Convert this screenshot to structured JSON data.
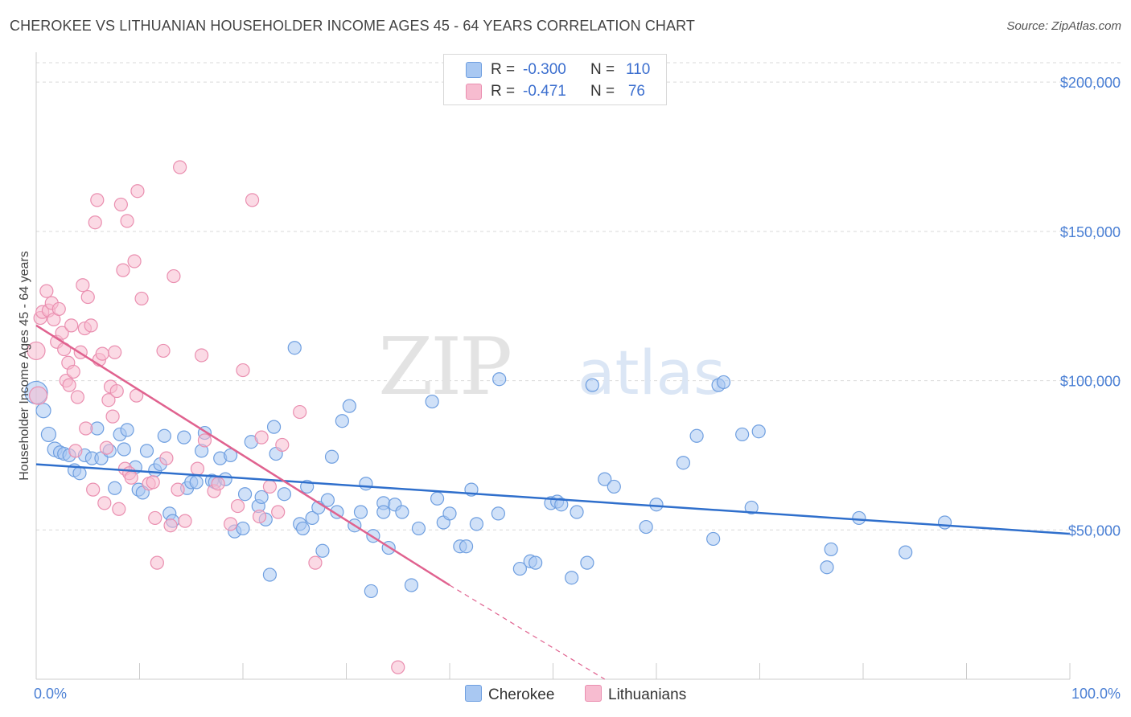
{
  "title": "CHEROKEE VS LITHUANIAN HOUSEHOLDER INCOME AGES 45 - 64 YEARS CORRELATION CHART",
  "source": "Source: ZipAtlas.com",
  "watermark": {
    "zip": "ZIP",
    "atlas": "atlas"
  },
  "colors": {
    "cherokee_fill": "#a9c8f2",
    "cherokee_stroke": "#6f9fe0",
    "cherokee_line": "#2f6fcc",
    "lithuanian_fill": "#f7bcd0",
    "lithuanian_stroke": "#ea8fb0",
    "lithuanian_line": "#e0628f",
    "tick_label": "#4a7fd4",
    "grid": "#d9d9d9"
  },
  "legend": {
    "r_label": "R =",
    "n_label": "N =",
    "rows": [
      {
        "r": "-0.300",
        "n": "110"
      },
      {
        "r": "-0.471",
        "n": "76"
      }
    ]
  },
  "bottom_legend": [
    "Cherokee",
    "Lithuanians"
  ],
  "chart_data": {
    "type": "scatter",
    "title": "CHEROKEE VS LITHUANIAN HOUSEHOLDER INCOME AGES 45 - 64 YEARS CORRELATION CHART",
    "xlabel": "",
    "ylabel": "Householder Income Ages 45 - 64 years",
    "xlim": [
      0,
      100
    ],
    "ylim": [
      0,
      210000
    ],
    "x_tick_labels": [
      "0.0%",
      "100.0%"
    ],
    "y_ticks": [
      50000,
      100000,
      150000,
      200000
    ],
    "y_tick_labels": [
      "$50,000",
      "$100,000",
      "$150,000",
      "$200,000"
    ],
    "grid": true,
    "legend_position": "top-center",
    "series": [
      {
        "name": "Cherokee",
        "r": -0.3,
        "n": 110,
        "trend": {
          "x": [
            0,
            100
          ],
          "y": [
            72000,
            48700
          ]
        },
        "points": [
          [
            0,
            96000,
            14
          ],
          [
            0.7,
            90000,
            9
          ],
          [
            1.2,
            82000,
            9
          ],
          [
            1.8,
            77000,
            9
          ],
          [
            2.3,
            76000,
            8
          ],
          [
            2.7,
            75500,
            8
          ],
          [
            3.2,
            75000,
            8
          ],
          [
            3.7,
            70000,
            8
          ],
          [
            4.2,
            69000,
            8
          ],
          [
            4.7,
            75000,
            8
          ],
          [
            5.4,
            74000,
            8
          ],
          [
            5.9,
            84000,
            8
          ],
          [
            6.3,
            74000,
            8
          ],
          [
            7.1,
            76500,
            8
          ],
          [
            7.6,
            64000,
            8
          ],
          [
            8.1,
            82000,
            8
          ],
          [
            8.5,
            77000,
            8
          ],
          [
            8.8,
            83500,
            8
          ],
          [
            9.6,
            71000,
            8
          ],
          [
            9.9,
            63500,
            8
          ],
          [
            10.3,
            62500,
            8
          ],
          [
            10.7,
            76500,
            8
          ],
          [
            11.5,
            70000,
            8
          ],
          [
            12.0,
            72000,
            8
          ],
          [
            12.4,
            81500,
            8
          ],
          [
            12.9,
            55500,
            8
          ],
          [
            13.2,
            53000,
            8
          ],
          [
            14.3,
            81000,
            8
          ],
          [
            14.6,
            64000,
            8
          ],
          [
            15.0,
            66000,
            8
          ],
          [
            15.5,
            66000,
            8
          ],
          [
            16.0,
            76500,
            8
          ],
          [
            16.3,
            82500,
            8
          ],
          [
            17.0,
            66500,
            8
          ],
          [
            17.3,
            66000,
            8
          ],
          [
            17.8,
            74000,
            8
          ],
          [
            18.3,
            67000,
            8
          ],
          [
            18.8,
            75000,
            8
          ],
          [
            19.2,
            49500,
            8
          ],
          [
            20.0,
            50500,
            8
          ],
          [
            20.2,
            62000,
            8
          ],
          [
            20.8,
            79500,
            8
          ],
          [
            21.5,
            58000,
            8
          ],
          [
            21.8,
            61000,
            8
          ],
          [
            22.2,
            53500,
            8
          ],
          [
            22.6,
            35000,
            8
          ],
          [
            23.0,
            84500,
            8
          ],
          [
            23.2,
            75500,
            8
          ],
          [
            24.0,
            62000,
            8
          ],
          [
            25.0,
            111000,
            8
          ],
          [
            25.5,
            52000,
            8
          ],
          [
            25.8,
            50500,
            8
          ],
          [
            26.2,
            64500,
            8
          ],
          [
            26.7,
            54000,
            8
          ],
          [
            27.3,
            57500,
            8
          ],
          [
            27.7,
            43000,
            8
          ],
          [
            28.2,
            60000,
            8
          ],
          [
            28.6,
            74500,
            8
          ],
          [
            29.1,
            56000,
            8
          ],
          [
            29.6,
            86500,
            8
          ],
          [
            30.3,
            91500,
            8
          ],
          [
            30.8,
            51500,
            8
          ],
          [
            31.4,
            56000,
            8
          ],
          [
            31.9,
            65500,
            8
          ],
          [
            32.4,
            29500,
            8
          ],
          [
            32.6,
            48000,
            8
          ],
          [
            33.6,
            59000,
            8
          ],
          [
            33.6,
            56000,
            8
          ],
          [
            34.1,
            44000,
            8
          ],
          [
            34.7,
            58500,
            8
          ],
          [
            35.4,
            56000,
            8
          ],
          [
            36.3,
            31500,
            8
          ],
          [
            37.0,
            50500,
            8
          ],
          [
            38.3,
            93000,
            8
          ],
          [
            38.8,
            60500,
            8
          ],
          [
            39.4,
            52500,
            8
          ],
          [
            40.0,
            55500,
            8
          ],
          [
            41.0,
            44500,
            8
          ],
          [
            41.6,
            44500,
            8
          ],
          [
            42.1,
            63500,
            8
          ],
          [
            42.6,
            52000,
            8
          ],
          [
            44.8,
            100500,
            8
          ],
          [
            44.7,
            55500,
            8
          ],
          [
            46.8,
            37000,
            8
          ],
          [
            47.8,
            39500,
            8
          ],
          [
            48.3,
            39000,
            8
          ],
          [
            49.8,
            59000,
            8
          ],
          [
            50.4,
            59500,
            8
          ],
          [
            50.8,
            58500,
            8
          ],
          [
            51.8,
            34000,
            8
          ],
          [
            52.3,
            56000,
            8
          ],
          [
            53.3,
            39000,
            8
          ],
          [
            53.8,
            98500,
            8
          ],
          [
            55.0,
            67000,
            8
          ],
          [
            55.9,
            64500,
            8
          ],
          [
            59.0,
            51000,
            8
          ],
          [
            60.0,
            58500,
            8
          ],
          [
            62.6,
            72500,
            8
          ],
          [
            63.9,
            81500,
            8
          ],
          [
            65.5,
            47000,
            8
          ],
          [
            66.0,
            98500,
            8
          ],
          [
            66.5,
            99500,
            8
          ],
          [
            68.3,
            82000,
            8
          ],
          [
            69.2,
            57500,
            8
          ],
          [
            69.9,
            83000,
            8
          ],
          [
            76.5,
            37500,
            8
          ],
          [
            76.9,
            43500,
            8
          ],
          [
            79.6,
            54000,
            8
          ],
          [
            84.1,
            42500,
            8
          ],
          [
            87.9,
            52500,
            8
          ]
        ]
      },
      {
        "name": "Lithuanians",
        "r": -0.471,
        "n": 76,
        "trend": {
          "x": [
            0,
            40
          ],
          "y": [
            118500,
            31500
          ]
        },
        "trend_dashed": {
          "x": [
            40,
            55
          ],
          "y": [
            31500,
            0
          ]
        },
        "points": [
          [
            0,
            110000,
            11
          ],
          [
            0.2,
            95000,
            11
          ],
          [
            0.4,
            121000,
            8
          ],
          [
            0.6,
            123000,
            8
          ],
          [
            1.0,
            130000,
            8
          ],
          [
            1.2,
            123500,
            8
          ],
          [
            1.5,
            126000,
            8
          ],
          [
            1.7,
            120500,
            8
          ],
          [
            2.0,
            113000,
            8
          ],
          [
            2.2,
            124000,
            8
          ],
          [
            2.5,
            116000,
            8
          ],
          [
            2.7,
            110500,
            8
          ],
          [
            2.9,
            100000,
            8
          ],
          [
            3.1,
            106000,
            8
          ],
          [
            3.2,
            98500,
            8
          ],
          [
            3.4,
            118500,
            8
          ],
          [
            3.6,
            103000,
            8
          ],
          [
            3.8,
            76500,
            8
          ],
          [
            4.0,
            94500,
            8
          ],
          [
            4.3,
            109500,
            8
          ],
          [
            4.5,
            132000,
            8
          ],
          [
            4.7,
            117500,
            8
          ],
          [
            4.8,
            84000,
            8
          ],
          [
            5.0,
            128000,
            8
          ],
          [
            5.3,
            118500,
            8
          ],
          [
            5.5,
            63500,
            8
          ],
          [
            5.7,
            153000,
            8
          ],
          [
            5.9,
            160500,
            8
          ],
          [
            6.1,
            107000,
            8
          ],
          [
            6.4,
            109000,
            8
          ],
          [
            6.6,
            59000,
            8
          ],
          [
            6.8,
            77500,
            8
          ],
          [
            7.0,
            93500,
            8
          ],
          [
            7.2,
            98000,
            8
          ],
          [
            7.4,
            88000,
            8
          ],
          [
            7.6,
            109500,
            8
          ],
          [
            7.8,
            96500,
            8
          ],
          [
            8.0,
            57000,
            8
          ],
          [
            8.2,
            159000,
            8
          ],
          [
            8.4,
            137000,
            8
          ],
          [
            8.6,
            70500,
            8
          ],
          [
            8.8,
            153500,
            8
          ],
          [
            9.0,
            69000,
            8
          ],
          [
            9.2,
            67500,
            8
          ],
          [
            9.5,
            140000,
            8
          ],
          [
            9.7,
            95000,
            8
          ],
          [
            9.8,
            163500,
            8
          ],
          [
            10.2,
            127500,
            8
          ],
          [
            10.9,
            65500,
            8
          ],
          [
            11.3,
            66000,
            8
          ],
          [
            11.5,
            54000,
            8
          ],
          [
            11.7,
            39000,
            8
          ],
          [
            12.3,
            110000,
            8
          ],
          [
            12.6,
            74000,
            8
          ],
          [
            13.0,
            51500,
            8
          ],
          [
            13.3,
            135000,
            8
          ],
          [
            13.7,
            63500,
            8
          ],
          [
            13.9,
            171500,
            8
          ],
          [
            14.4,
            53000,
            8
          ],
          [
            15.6,
            70500,
            8
          ],
          [
            16.0,
            108500,
            8
          ],
          [
            16.3,
            80000,
            8
          ],
          [
            17.2,
            63000,
            8
          ],
          [
            17.6,
            65500,
            8
          ],
          [
            18.8,
            52000,
            8
          ],
          [
            19.5,
            58000,
            8
          ],
          [
            20.0,
            103500,
            8
          ],
          [
            20.9,
            160500,
            8
          ],
          [
            21.6,
            54500,
            8
          ],
          [
            21.8,
            81000,
            8
          ],
          [
            22.6,
            64500,
            8
          ],
          [
            23.4,
            56000,
            8
          ],
          [
            23.8,
            78500,
            8
          ],
          [
            25.5,
            89500,
            8
          ],
          [
            27.0,
            39000,
            8
          ],
          [
            35.0,
            4000,
            8
          ]
        ]
      }
    ]
  }
}
